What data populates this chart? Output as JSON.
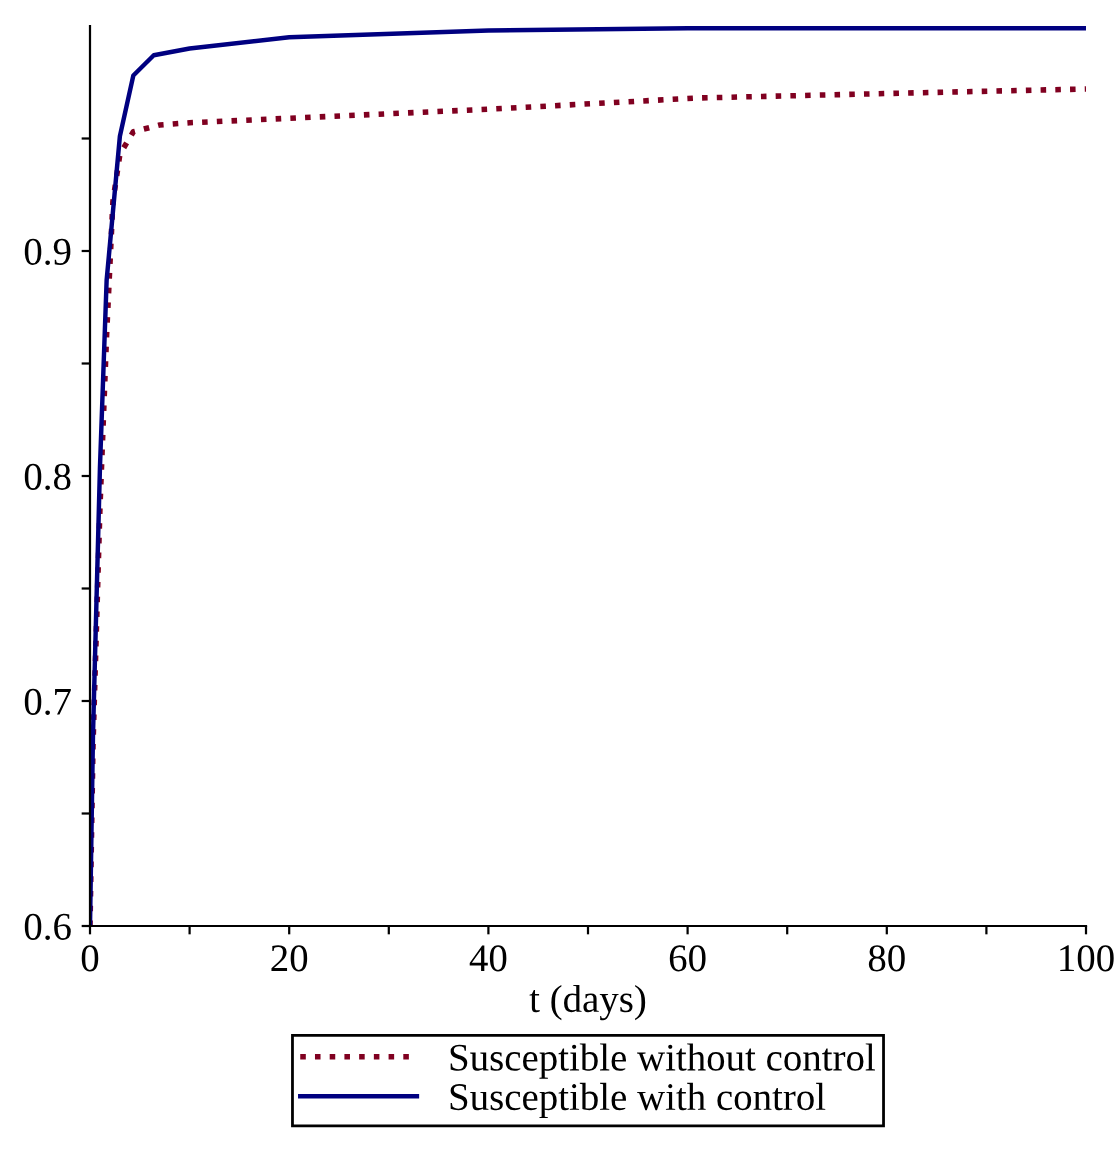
{
  "chart_data": {
    "type": "line",
    "xlabel": "t (days)",
    "xlim": [
      0,
      100
    ],
    "xticks": [
      0,
      {
        "value": 10,
        "label": null
      },
      20,
      {
        "value": 30,
        "label": null
      },
      40,
      {
        "value": 50,
        "label": null
      },
      60,
      {
        "value": 70,
        "label": null
      },
      80,
      {
        "value": 90,
        "label": null
      },
      100
    ],
    "ylim": [
      0.6,
      1.0
    ],
    "yticks": [
      0.6,
      {
        "value": 0.65,
        "label": null
      },
      0.7,
      {
        "value": 0.75,
        "label": null
      },
      0.8,
      {
        "value": 0.85,
        "label": null
      },
      0.9,
      {
        "value": 0.95,
        "label": null
      }
    ],
    "grid": false,
    "legend": "bottom",
    "series": [
      {
        "name": "Susceptible without control",
        "color": "#800020",
        "line_style": "dotted",
        "x": [
          0,
          0.3,
          1,
          1.67,
          2.3,
          3,
          4.35,
          7,
          10,
          20,
          40,
          61,
          80,
          100
        ],
        "values": [
          0.6,
          0.68,
          0.786,
          0.863,
          0.922,
          0.943,
          0.953,
          0.956,
          0.957,
          0.959,
          0.963,
          0.968,
          0.97,
          0.972
        ]
      },
      {
        "name": "Susceptible with control",
        "color": "#000080",
        "line_style": "solid",
        "x": [
          0,
          0.3,
          1,
          1.67,
          3,
          4.35,
          6.4,
          10,
          20,
          40,
          60,
          80,
          100
        ],
        "values": [
          0.6,
          0.685,
          0.804,
          0.887,
          0.951,
          0.978,
          0.987,
          0.99,
          0.995,
          0.998,
          0.999,
          0.999,
          0.999
        ]
      }
    ]
  }
}
